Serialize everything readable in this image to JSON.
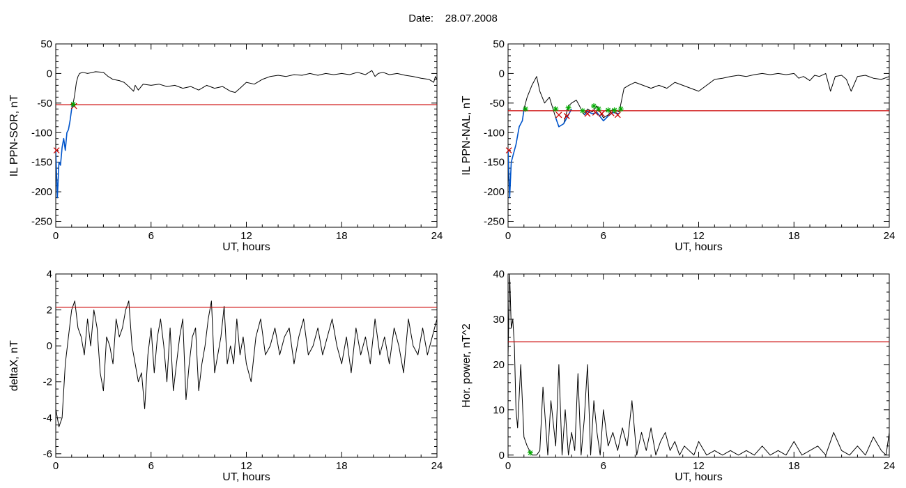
{
  "header": {
    "date_label": "Date:",
    "date_value": "28.07.2008"
  },
  "chart_data": [
    {
      "type": "line",
      "title": "",
      "xlabel": "UT, hours",
      "ylabel": "IL PPN-SOR, nT",
      "xlim": [
        0,
        24
      ],
      "ylim": [
        -260,
        50
      ],
      "xticks": [
        0,
        6,
        12,
        18,
        24
      ],
      "yticks": [
        50,
        0,
        -50,
        -100,
        -150,
        -200,
        -250
      ],
      "threshold": -53,
      "threshold_color": "#cc0000",
      "series": [
        {
          "color": "#000000",
          "x": [
            0,
            0.1,
            0.2,
            0.3,
            0.4,
            0.5,
            0.6,
            0.7,
            0.8,
            0.9,
            1.0,
            1.1,
            1.2,
            1.3,
            1.4,
            1.5,
            1.7,
            2.0,
            2.5,
            3.0,
            3.3,
            3.6,
            4.0,
            4.3,
            4.6,
            4.9,
            5.0,
            5.2,
            5.5,
            6.0,
            6.5,
            7.0,
            7.5,
            8.0,
            8.5,
            9.0,
            9.5,
            10.0,
            10.5,
            11.0,
            11.3,
            11.6,
            12.0,
            12.5,
            13.0,
            13.5,
            14.0,
            14.5,
            15.0,
            15.5,
            16.0,
            16.5,
            17.0,
            17.5,
            18.0,
            18.5,
            19.0,
            19.5,
            19.9,
            20.1,
            20.3,
            20.6,
            21.0,
            21.5,
            22.0,
            22.5,
            23.0,
            23.5,
            23.8,
            23.9,
            24.0
          ],
          "y": [
            -130,
            -210,
            -150,
            -155,
            -125,
            -110,
            -130,
            -100,
            -95,
            -80,
            -60,
            -50,
            -35,
            -15,
            -5,
            0,
            2,
            0,
            3,
            2,
            -5,
            -10,
            -12,
            -15,
            -22,
            -30,
            -20,
            -28,
            -18,
            -20,
            -18,
            -22,
            -20,
            -25,
            -22,
            -28,
            -20,
            -25,
            -22,
            -30,
            -32,
            -25,
            -15,
            -18,
            -10,
            -5,
            -3,
            -5,
            -2,
            -3,
            0,
            -3,
            0,
            -2,
            0,
            -2,
            2,
            -2,
            5,
            -5,
            0,
            2,
            -2,
            0,
            -3,
            -5,
            -8,
            -10,
            -15,
            -5,
            -10
          ]
        },
        {
          "color": "#0055cc",
          "x": [
            0,
            0.1,
            0.2,
            0.3,
            0.4,
            0.5,
            0.6,
            0.7,
            0.8,
            0.9,
            1.0,
            1.1,
            1.2
          ],
          "y": [
            -130,
            -210,
            -150,
            -155,
            -125,
            -110,
            -130,
            -100,
            -95,
            -80,
            -60,
            -50,
            -52
          ]
        }
      ],
      "markers": [
        {
          "symbol": "x",
          "color": "#cc0000",
          "x": 0.05,
          "y": -130
        },
        {
          "symbol": "x",
          "color": "#cc0000",
          "x": 1.15,
          "y": -55
        },
        {
          "symbol": "star",
          "color": "#00aa00",
          "x": 1.1,
          "y": -52
        }
      ]
    },
    {
      "type": "line",
      "title": "",
      "xlabel": "UT, hours",
      "ylabel": "IL PPN-NAL, nT",
      "xlim": [
        0,
        24
      ],
      "ylim": [
        -260,
        50
      ],
      "xticks": [
        0,
        6,
        12,
        18,
        24
      ],
      "yticks": [
        50,
        0,
        -50,
        -100,
        -150,
        -200,
        -250
      ],
      "threshold": -63,
      "threshold_color": "#cc0000",
      "series": [
        {
          "color": "#000000",
          "x": [
            0,
            0.1,
            0.2,
            0.3,
            0.5,
            0.7,
            0.9,
            1.0,
            1.2,
            1.5,
            1.8,
            2.0,
            2.3,
            2.6,
            3.0,
            3.2,
            3.5,
            3.8,
            4.0,
            4.3,
            4.6,
            4.8,
            5.0,
            5.3,
            5.6,
            6.0,
            6.3,
            6.6,
            7.0,
            7.3,
            7.6,
            8.0,
            8.5,
            9.0,
            9.5,
            10.0,
            10.5,
            11.0,
            11.5,
            12.0,
            12.5,
            13.0,
            13.5,
            14.0,
            14.5,
            15.0,
            15.5,
            16.0,
            16.5,
            17.0,
            17.5,
            18.0,
            18.3,
            18.6,
            19.0,
            19.3,
            19.6,
            20.0,
            20.3,
            20.6,
            21.0,
            21.3,
            21.6,
            22.0,
            22.5,
            23.0,
            23.5,
            24.0
          ],
          "y": [
            -130,
            -210,
            -150,
            -140,
            -120,
            -90,
            -80,
            -60,
            -40,
            -20,
            -5,
            -30,
            -50,
            -40,
            -75,
            -90,
            -85,
            -55,
            -50,
            -45,
            -60,
            -70,
            -60,
            -65,
            -55,
            -75,
            -70,
            -60,
            -65,
            -25,
            -20,
            -15,
            -20,
            -25,
            -20,
            -25,
            -15,
            -20,
            -25,
            -30,
            -20,
            -10,
            -8,
            -5,
            -3,
            -5,
            -2,
            0,
            -2,
            0,
            -2,
            0,
            -8,
            -5,
            -12,
            -3,
            -5,
            0,
            -30,
            -5,
            -3,
            -10,
            -30,
            -5,
            -3,
            -8,
            -10,
            -5
          ]
        },
        {
          "color": "#0055cc",
          "x": [
            0,
            0.1,
            0.2,
            0.3,
            0.5,
            0.7,
            0.9,
            1.0,
            1.1
          ],
          "y": [
            -130,
            -210,
            -150,
            -140,
            -120,
            -90,
            -80,
            -62,
            -63
          ]
        },
        {
          "color": "#0055cc",
          "x": [
            3.0,
            3.2,
            3.5,
            3.8,
            4.0
          ],
          "y": [
            -75,
            -90,
            -85,
            -70,
            -60
          ]
        },
        {
          "color": "#0055cc",
          "x": [
            4.8,
            5.0,
            5.3,
            5.6,
            6.0,
            6.3,
            6.6,
            7.0
          ],
          "y": [
            -70,
            -64,
            -68,
            -66,
            -80,
            -72,
            -66,
            -68
          ]
        }
      ],
      "markers": [
        {
          "symbol": "x",
          "color": "#cc0000",
          "x": 0.05,
          "y": -130
        },
        {
          "symbol": "x",
          "color": "#cc0000",
          "x": 3.2,
          "y": -70
        },
        {
          "symbol": "x",
          "color": "#cc0000",
          "x": 3.7,
          "y": -72
        },
        {
          "symbol": "x",
          "color": "#cc0000",
          "x": 5.0,
          "y": -68
        },
        {
          "symbol": "x",
          "color": "#cc0000",
          "x": 5.5,
          "y": -66
        },
        {
          "symbol": "x",
          "color": "#cc0000",
          "x": 5.9,
          "y": -68
        },
        {
          "symbol": "x",
          "color": "#cc0000",
          "x": 6.5,
          "y": -67
        },
        {
          "symbol": "x",
          "color": "#cc0000",
          "x": 6.9,
          "y": -70
        },
        {
          "symbol": "star",
          "color": "#00aa00",
          "x": 1.1,
          "y": -60
        },
        {
          "symbol": "star",
          "color": "#00aa00",
          "x": 3.0,
          "y": -60
        },
        {
          "symbol": "star",
          "color": "#00aa00",
          "x": 3.8,
          "y": -58
        },
        {
          "symbol": "star",
          "color": "#00aa00",
          "x": 4.7,
          "y": -63
        },
        {
          "symbol": "star",
          "color": "#00aa00",
          "x": 5.4,
          "y": -55
        },
        {
          "symbol": "star",
          "color": "#00aa00",
          "x": 5.7,
          "y": -60
        },
        {
          "symbol": "star",
          "color": "#00aa00",
          "x": 6.3,
          "y": -62
        },
        {
          "symbol": "star",
          "color": "#00aa00",
          "x": 6.7,
          "y": -62
        },
        {
          "symbol": "star",
          "color": "#00aa00",
          "x": 7.1,
          "y": -60
        }
      ]
    },
    {
      "type": "line",
      "title": "",
      "xlabel": "UT, hours",
      "ylabel": "deltaX, nT",
      "xlim": [
        0,
        24
      ],
      "ylim": [
        -6.2,
        4
      ],
      "xticks": [
        0,
        6,
        12,
        18,
        24
      ],
      "yticks": [
        4,
        2,
        0,
        -2,
        -4,
        -6
      ],
      "threshold": 2.15,
      "threshold_color": "#cc0000",
      "series": [
        {
          "color": "#000000",
          "x": [
            0,
            0.2,
            0.4,
            0.6,
            0.8,
            1.0,
            1.2,
            1.4,
            1.6,
            1.8,
            2.0,
            2.2,
            2.4,
            2.6,
            2.8,
            3.0,
            3.2,
            3.4,
            3.6,
            3.8,
            4.0,
            4.2,
            4.4,
            4.6,
            4.8,
            5.0,
            5.2,
            5.4,
            5.6,
            5.8,
            6.0,
            6.2,
            6.4,
            6.6,
            6.8,
            7.0,
            7.2,
            7.4,
            7.6,
            7.8,
            8.0,
            8.2,
            8.4,
            8.6,
            8.8,
            9.0,
            9.2,
            9.4,
            9.6,
            9.8,
            10.0,
            10.2,
            10.4,
            10.6,
            10.8,
            11.0,
            11.2,
            11.4,
            11.6,
            11.8,
            12.0,
            12.3,
            12.6,
            12.9,
            13.2,
            13.5,
            13.8,
            14.1,
            14.4,
            14.7,
            15.0,
            15.3,
            15.6,
            15.9,
            16.2,
            16.5,
            16.8,
            17.1,
            17.4,
            17.7,
            18.0,
            18.3,
            18.6,
            18.9,
            19.2,
            19.5,
            19.8,
            20.1,
            20.4,
            20.7,
            21.0,
            21.3,
            21.6,
            21.9,
            22.2,
            22.5,
            22.8,
            23.1,
            23.4,
            23.7,
            24.0
          ],
          "y": [
            -3.5,
            -4.5,
            -4.0,
            -1.0,
            0.5,
            2.0,
            2.5,
            1.0,
            0.5,
            -0.5,
            1.5,
            0.0,
            2.0,
            1.0,
            -1.5,
            -2.5,
            0.5,
            0.0,
            -1.0,
            1.5,
            0.5,
            1.0,
            2.0,
            2.5,
            0.0,
            -1.0,
            -2.0,
            -1.5,
            -3.5,
            -0.5,
            1.0,
            -1.5,
            0.5,
            1.5,
            0.0,
            -2.0,
            1.0,
            -2.5,
            -1.0,
            0.5,
            1.5,
            -3.0,
            -1.0,
            0.5,
            1.0,
            -2.5,
            -1.0,
            0.0,
            1.5,
            2.5,
            -1.5,
            -0.5,
            0.5,
            2.2,
            -1.0,
            0.0,
            -1.0,
            1.5,
            -0.5,
            0.5,
            -1.0,
            -2.0,
            0.5,
            1.5,
            -0.5,
            0.0,
            1.0,
            -0.5,
            0.5,
            1.0,
            -1.0,
            0.5,
            1.5,
            -0.5,
            0.0,
            1.0,
            -0.5,
            0.5,
            1.5,
            0.0,
            -1.0,
            0.5,
            -1.5,
            1.0,
            -0.5,
            0.5,
            -1.0,
            1.5,
            -0.5,
            0.5,
            -1.0,
            1.0,
            0.0,
            -1.5,
            1.5,
            0.0,
            -0.5,
            1.0,
            -0.5,
            0.5,
            1.5
          ]
        }
      ],
      "markers": []
    },
    {
      "type": "line",
      "title": "",
      "xlabel": "UT, hours",
      "ylabel": "Hor. power, nT^2",
      "xlim": [
        0,
        24
      ],
      "ylim": [
        -0.5,
        40
      ],
      "xticks": [
        0,
        6,
        12,
        18,
        24
      ],
      "yticks": [
        40,
        30,
        20,
        10,
        0
      ],
      "threshold": 25,
      "threshold_color": "#cc0000",
      "series": [
        {
          "color": "#000000",
          "x": [
            0,
            0.1,
            0.2,
            0.3,
            0.4,
            0.5,
            0.6,
            0.8,
            1.0,
            1.2,
            1.5,
            1.8,
            2.0,
            2.2,
            2.5,
            2.7,
            3.0,
            3.2,
            3.4,
            3.6,
            3.8,
            4.0,
            4.2,
            4.4,
            4.6,
            4.8,
            5.0,
            5.2,
            5.4,
            5.6,
            5.8,
            6.0,
            6.3,
            6.6,
            6.9,
            7.2,
            7.5,
            7.8,
            8.1,
            8.4,
            8.7,
            9.0,
            9.3,
            9.6,
            9.9,
            10.2,
            10.5,
            10.8,
            11.1,
            11.4,
            11.7,
            12.0,
            12.5,
            13.0,
            13.5,
            14.0,
            14.5,
            15.0,
            15.5,
            16.0,
            16.5,
            17.0,
            17.5,
            18.0,
            18.5,
            19.0,
            19.5,
            20.0,
            20.5,
            21.0,
            21.5,
            22.0,
            22.5,
            23.0,
            23.5,
            23.8,
            24.0
          ],
          "y": [
            22,
            40,
            28,
            30,
            24,
            10,
            6,
            20,
            4,
            2,
            0,
            0,
            1,
            15,
            0,
            12,
            2,
            20,
            0,
            10,
            0,
            5,
            1,
            18,
            0,
            8,
            20,
            0,
            12,
            5,
            0,
            10,
            2,
            5,
            1,
            6,
            2,
            12,
            0,
            5,
            1,
            6,
            0,
            3,
            5,
            1,
            3,
            0,
            2,
            1,
            0,
            3,
            0,
            1,
            0,
            1,
            0,
            1,
            0,
            2,
            0,
            1,
            0,
            3,
            0,
            1,
            2,
            0,
            5,
            1,
            0,
            2,
            0,
            4,
            1,
            0,
            5
          ]
        }
      ],
      "markers": [
        {
          "symbol": "star",
          "color": "#00aa00",
          "x": 1.4,
          "y": 0.5
        }
      ]
    }
  ]
}
